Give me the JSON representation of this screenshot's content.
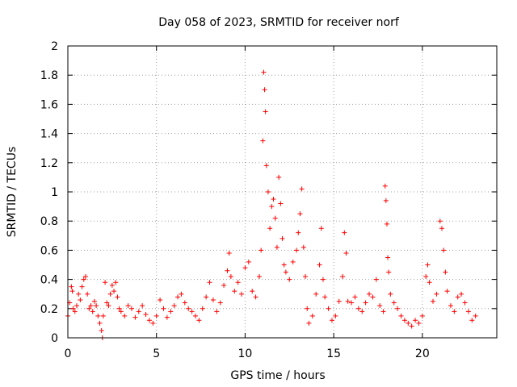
{
  "chart_data": {
    "type": "scatter",
    "title": "Day 058 of 2023, SRMTID for receiver norf",
    "xlabel": "GPS time / hours",
    "ylabel": "SRMTID / TECUs",
    "xlim": [
      0,
      24.2
    ],
    "ylim": [
      0,
      2
    ],
    "x_ticks": [
      0,
      5,
      10,
      15,
      20
    ],
    "y_ticks": [
      0,
      0.2,
      0.4,
      0.6,
      0.8,
      1,
      1.2,
      1.4,
      1.6,
      1.8,
      2
    ],
    "x_tick_labels": [
      "0",
      "5",
      "10",
      "15",
      "20"
    ],
    "y_tick_labels": [
      "0",
      "0.2",
      "0.4",
      "0.6",
      "0.8",
      "1",
      "1.2",
      "1.4",
      "1.6",
      "1.8",
      "2"
    ],
    "grid": true,
    "marker": "+",
    "marker_color": "#ff0000",
    "series": [
      {
        "name": "SRMTID",
        "points": [
          [
            0.0,
            0.15
          ],
          [
            0.1,
            0.24
          ],
          [
            0.2,
            0.35
          ],
          [
            0.25,
            0.32
          ],
          [
            0.3,
            0.2
          ],
          [
            0.4,
            0.18
          ],
          [
            0.5,
            0.22
          ],
          [
            0.6,
            0.3
          ],
          [
            0.7,
            0.26
          ],
          [
            0.8,
            0.35
          ],
          [
            0.9,
            0.4
          ],
          [
            1.0,
            0.42
          ],
          [
            1.1,
            0.3
          ],
          [
            1.2,
            0.2
          ],
          [
            1.3,
            0.22
          ],
          [
            1.4,
            0.18
          ],
          [
            1.5,
            0.25
          ],
          [
            1.6,
            0.22
          ],
          [
            1.7,
            0.15
          ],
          [
            1.8,
            0.1
          ],
          [
            1.9,
            0.05
          ],
          [
            1.95,
            0.0
          ],
          [
            2.0,
            0.15
          ],
          [
            2.1,
            0.38
          ],
          [
            2.2,
            0.24
          ],
          [
            2.3,
            0.22
          ],
          [
            2.4,
            0.3
          ],
          [
            2.5,
            0.36
          ],
          [
            2.6,
            0.32
          ],
          [
            2.7,
            0.38
          ],
          [
            2.8,
            0.28
          ],
          [
            2.9,
            0.2
          ],
          [
            3.0,
            0.18
          ],
          [
            3.2,
            0.15
          ],
          [
            3.4,
            0.22
          ],
          [
            3.6,
            0.2
          ],
          [
            3.8,
            0.14
          ],
          [
            4.0,
            0.18
          ],
          [
            4.2,
            0.22
          ],
          [
            4.4,
            0.16
          ],
          [
            4.6,
            0.12
          ],
          [
            4.8,
            0.1
          ],
          [
            5.0,
            0.15
          ],
          [
            5.2,
            0.26
          ],
          [
            5.4,
            0.2
          ],
          [
            5.6,
            0.14
          ],
          [
            5.8,
            0.18
          ],
          [
            6.0,
            0.22
          ],
          [
            6.2,
            0.28
          ],
          [
            6.4,
            0.3
          ],
          [
            6.6,
            0.24
          ],
          [
            6.8,
            0.2
          ],
          [
            7.0,
            0.18
          ],
          [
            7.2,
            0.15
          ],
          [
            7.4,
            0.12
          ],
          [
            7.6,
            0.2
          ],
          [
            7.8,
            0.28
          ],
          [
            8.0,
            0.38
          ],
          [
            8.2,
            0.26
          ],
          [
            8.4,
            0.18
          ],
          [
            8.6,
            0.24
          ],
          [
            8.8,
            0.36
          ],
          [
            9.0,
            0.46
          ],
          [
            9.1,
            0.58
          ],
          [
            9.2,
            0.42
          ],
          [
            9.4,
            0.32
          ],
          [
            9.6,
            0.38
          ],
          [
            9.8,
            0.3
          ],
          [
            10.0,
            0.48
          ],
          [
            10.2,
            0.52
          ],
          [
            10.4,
            0.32
          ],
          [
            10.6,
            0.28
          ],
          [
            10.8,
            0.42
          ],
          [
            10.9,
            0.6
          ],
          [
            11.0,
            1.35
          ],
          [
            11.05,
            1.82
          ],
          [
            11.1,
            1.7
          ],
          [
            11.15,
            1.55
          ],
          [
            11.2,
            1.18
          ],
          [
            11.3,
            1.0
          ],
          [
            11.4,
            0.75
          ],
          [
            11.5,
            0.9
          ],
          [
            11.6,
            0.95
          ],
          [
            11.7,
            0.82
          ],
          [
            11.8,
            0.62
          ],
          [
            11.9,
            1.1
          ],
          [
            12.0,
            0.92
          ],
          [
            12.1,
            0.68
          ],
          [
            12.2,
            0.5
          ],
          [
            12.3,
            0.45
          ],
          [
            12.5,
            0.4
          ],
          [
            12.7,
            0.52
          ],
          [
            12.9,
            0.6
          ],
          [
            13.0,
            0.72
          ],
          [
            13.1,
            0.85
          ],
          [
            13.2,
            1.02
          ],
          [
            13.3,
            0.62
          ],
          [
            13.4,
            0.42
          ],
          [
            13.5,
            0.2
          ],
          [
            13.6,
            0.1
          ],
          [
            13.8,
            0.15
          ],
          [
            14.0,
            0.3
          ],
          [
            14.2,
            0.5
          ],
          [
            14.3,
            0.75
          ],
          [
            14.4,
            0.4
          ],
          [
            14.5,
            0.28
          ],
          [
            14.7,
            0.2
          ],
          [
            14.9,
            0.12
          ],
          [
            15.1,
            0.15
          ],
          [
            15.3,
            0.25
          ],
          [
            15.5,
            0.42
          ],
          [
            15.6,
            0.72
          ],
          [
            15.7,
            0.58
          ],
          [
            15.8,
            0.25
          ],
          [
            16.0,
            0.24
          ],
          [
            16.2,
            0.28
          ],
          [
            16.4,
            0.2
          ],
          [
            16.6,
            0.18
          ],
          [
            16.8,
            0.24
          ],
          [
            17.0,
            0.3
          ],
          [
            17.2,
            0.28
          ],
          [
            17.4,
            0.4
          ],
          [
            17.6,
            0.22
          ],
          [
            17.8,
            0.18
          ],
          [
            17.9,
            1.04
          ],
          [
            17.95,
            0.94
          ],
          [
            18.0,
            0.78
          ],
          [
            18.05,
            0.55
          ],
          [
            18.1,
            0.45
          ],
          [
            18.2,
            0.3
          ],
          [
            18.4,
            0.24
          ],
          [
            18.6,
            0.2
          ],
          [
            18.8,
            0.15
          ],
          [
            19.0,
            0.12
          ],
          [
            19.2,
            0.1
          ],
          [
            19.4,
            0.08
          ],
          [
            19.6,
            0.12
          ],
          [
            19.8,
            0.1
          ],
          [
            20.0,
            0.15
          ],
          [
            20.2,
            0.42
          ],
          [
            20.3,
            0.5
          ],
          [
            20.4,
            0.38
          ],
          [
            20.6,
            0.25
          ],
          [
            20.8,
            0.3
          ],
          [
            21.0,
            0.8
          ],
          [
            21.1,
            0.75
          ],
          [
            21.2,
            0.6
          ],
          [
            21.3,
            0.45
          ],
          [
            21.4,
            0.32
          ],
          [
            21.6,
            0.22
          ],
          [
            21.8,
            0.18
          ],
          [
            22.0,
            0.28
          ],
          [
            22.2,
            0.3
          ],
          [
            22.4,
            0.24
          ],
          [
            22.6,
            0.18
          ],
          [
            22.8,
            0.12
          ],
          [
            23.0,
            0.15
          ]
        ]
      }
    ]
  }
}
